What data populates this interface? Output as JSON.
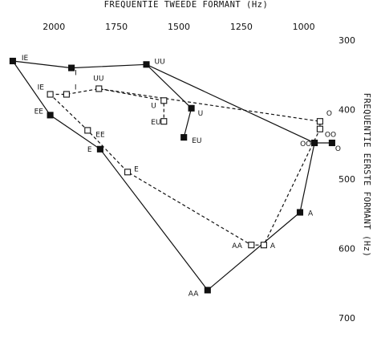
{
  "chart_data": {
    "type": "scatter",
    "title": "",
    "xlabel": "FREQUENTIE TWEEDE FORMANT (Hz)",
    "ylabel": "FREQUENTIE EERSTE FORMANT (Hz)",
    "x_reversed": true,
    "y_reversed": true,
    "xlim": [
      2200,
      850
    ],
    "ylim": [
      300,
      700
    ],
    "x_ticks": [
      2000,
      1750,
      1500,
      1250,
      1000
    ],
    "y_ticks": [
      300,
      400,
      500,
      600,
      700
    ],
    "grid": false,
    "axis_positions": {
      "x_tick_labels": "top",
      "y_tick_labels": "right",
      "ylabel_orientation": "vertical-right"
    },
    "series": [
      {
        "marker": "filled-square",
        "line": "solid",
        "points": [
          {
            "label": "IE",
            "x": 2165,
            "y": 330
          },
          {
            "label": "I",
            "x": 1930,
            "y": 340
          },
          {
            "label": "UU",
            "x": 1630,
            "y": 335
          },
          {
            "label": "U",
            "x": 1450,
            "y": 398
          },
          {
            "label": "EU",
            "x": 1480,
            "y": 440
          },
          {
            "label": "EE",
            "x": 2015,
            "y": 408
          },
          {
            "label": "E",
            "x": 1815,
            "y": 457
          },
          {
            "label": "AA",
            "x": 1385,
            "y": 660
          },
          {
            "label": "A",
            "x": 1015,
            "y": 548
          },
          {
            "label": "OO",
            "x": 957,
            "y": 448
          },
          {
            "label": "O",
            "x": 887,
            "y": 448
          }
        ]
      },
      {
        "marker": "open-square",
        "line": "dashed",
        "points": [
          {
            "label": "IE",
            "x": 2015,
            "y": 378
          },
          {
            "label": "I",
            "x": 1950,
            "y": 378
          },
          {
            "label": "UU",
            "x": 1820,
            "y": 370
          },
          {
            "label": "U",
            "x": 1560,
            "y": 387
          },
          {
            "label": "EU",
            "x": 1560,
            "y": 417
          },
          {
            "label": "EE",
            "x": 1865,
            "y": 430
          },
          {
            "label": "E",
            "x": 1705,
            "y": 490
          },
          {
            "label": "AA",
            "x": 1210,
            "y": 595
          },
          {
            "label": "A",
            "x": 1160,
            "y": 595
          },
          {
            "label": "OO",
            "x": 935,
            "y": 428
          },
          {
            "label": "O",
            "x": 935,
            "y": 417
          }
        ]
      }
    ],
    "solid_paths": [
      [
        "IE",
        "I",
        "UU",
        "U",
        "EU"
      ],
      [
        "UU",
        "OO",
        "O"
      ],
      [
        "IE",
        "EE",
        "E",
        "AA",
        "A",
        "OO"
      ]
    ],
    "dashed_paths": [
      [
        "IE",
        "I",
        "UU",
        "U",
        "EU"
      ],
      [
        "UU",
        "O",
        "OO",
        "A",
        "AA",
        "E",
        "EE",
        "IE"
      ]
    ]
  }
}
